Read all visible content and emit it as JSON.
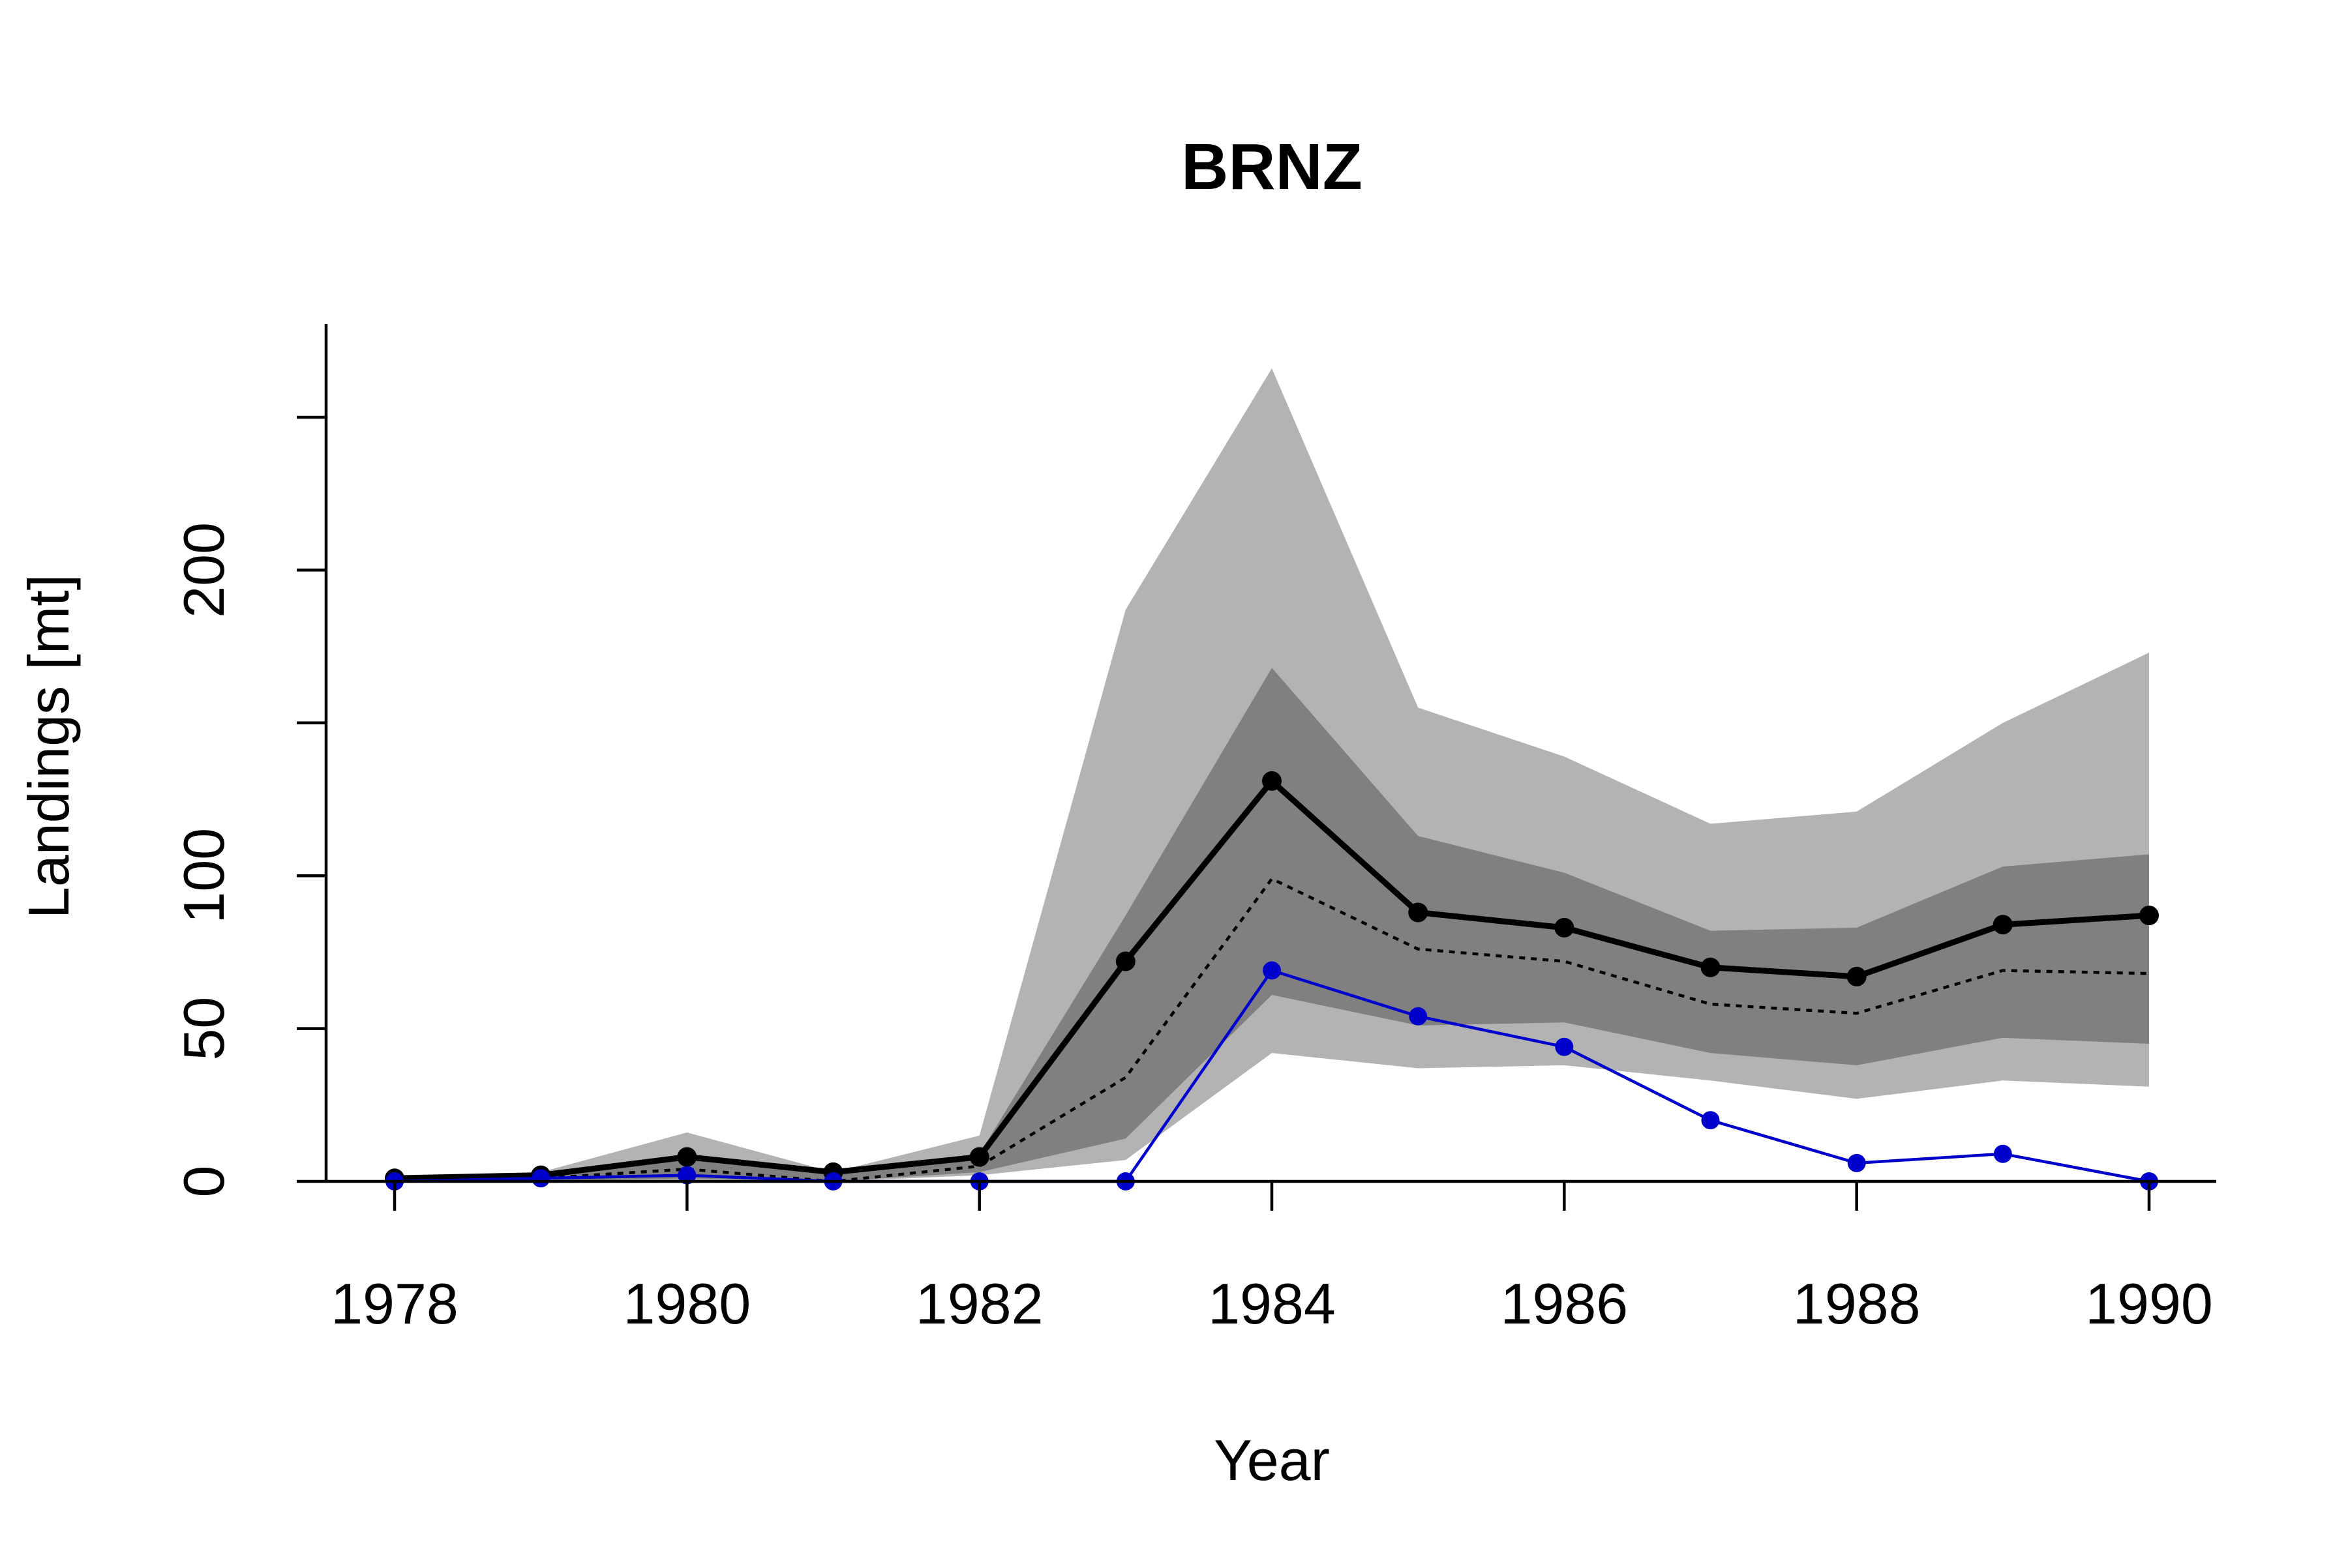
{
  "chart_data": {
    "type": "line",
    "title": "BRNZ",
    "xlabel": "Year",
    "ylabel": "Landings [mt]",
    "xlim": [
      1978,
      1990
    ],
    "ylim": [
      0,
      250
    ],
    "x_ticks": [
      1978,
      1980,
      1982,
      1984,
      1986,
      1988,
      1990
    ],
    "y_ticks": [
      0,
      50,
      100,
      150,
      200,
      250
    ],
    "y_tick_labels": [
      "0",
      "50",
      "100",
      "",
      "200",
      ""
    ],
    "x": [
      1978,
      1979,
      1980,
      1981,
      1982,
      1983,
      1984,
      1985,
      1986,
      1987,
      1988,
      1989,
      1990
    ],
    "bands": [
      {
        "fill": "#b3b3b3",
        "lower": [
          0,
          0,
          0,
          0,
          2,
          7,
          42,
          37,
          38,
          33,
          27,
          33,
          31
        ],
        "upper": [
          2,
          3,
          16,
          3,
          15,
          187,
          266,
          155,
          139,
          117,
          121,
          150,
          173
        ]
      },
      {
        "fill": "#808080",
        "lower": [
          0,
          0,
          1,
          0,
          3,
          14,
          61,
          51,
          52,
          42,
          38,
          47,
          45
        ],
        "upper": [
          1,
          2,
          9,
          3,
          9,
          87,
          168,
          113,
          101,
          82,
          83,
          103,
          107
        ]
      }
    ],
    "series": [
      {
        "values": [
          1,
          2,
          8,
          3,
          8,
          72,
          131,
          88,
          83,
          70,
          67,
          84,
          87
        ],
        "color": "#000000",
        "style": "solid-thick",
        "markers": true
      },
      {
        "values": [
          0,
          1,
          4,
          0,
          5,
          34,
          99,
          76,
          72,
          58,
          55,
          69,
          68
        ],
        "color": "#000000",
        "style": "dotted",
        "markers": false
      },
      {
        "values": [
          0,
          1,
          2,
          0,
          0,
          0,
          69,
          54,
          44,
          20,
          6,
          9,
          0
        ],
        "color": "#0000cd",
        "style": "solid-thin",
        "markers": true
      }
    ],
    "grid": false,
    "legend": "none"
  }
}
